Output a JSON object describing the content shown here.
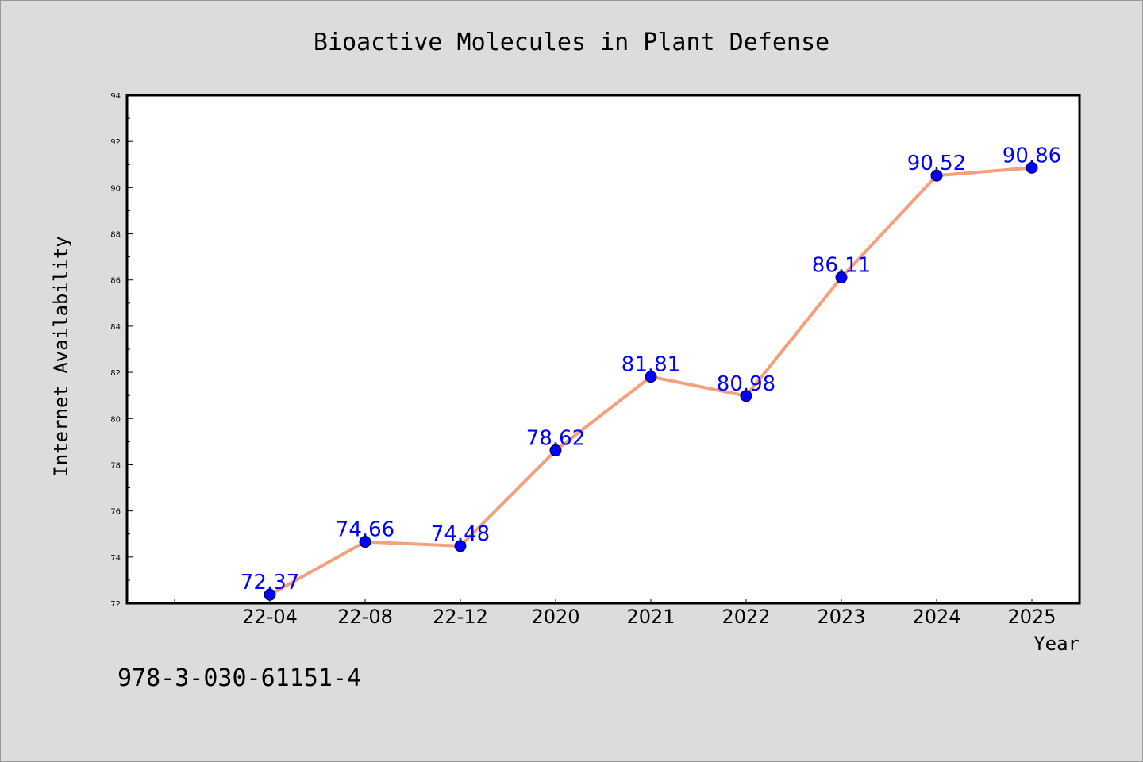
{
  "chart_data": {
    "type": "line",
    "title": "Bioactive Molecules in Plant Defense",
    "xlabel": "Year",
    "ylabel": "Internet Availability",
    "categories": [
      "22-04",
      "22-08",
      "22-12",
      "2020",
      "2021",
      "2022",
      "2023",
      "2024",
      "2025"
    ],
    "series": [
      {
        "values": [
          72.37,
          74.66,
          74.48,
          78.62,
          81.81,
          80.98,
          86.11,
          90.52,
          90.86
        ]
      }
    ],
    "data_labels": [
      "72.37",
      "74.66",
      "74.48",
      "78.62",
      "81.81",
      "80.98",
      "86.11",
      "90.52",
      "90.86"
    ],
    "ylim": [
      72,
      94
    ],
    "yticks": [
      72,
      74,
      76,
      78,
      80,
      82,
      84,
      86,
      88,
      90,
      92,
      94
    ],
    "grid": false,
    "line_color": "#f4a07a",
    "marker_color": "#0000ff",
    "label_color": "#0000ff",
    "background": "#dcdcdc",
    "plot_background": "#ffffff"
  },
  "annotation": {
    "isbn": "978-3-030-61151-4"
  }
}
